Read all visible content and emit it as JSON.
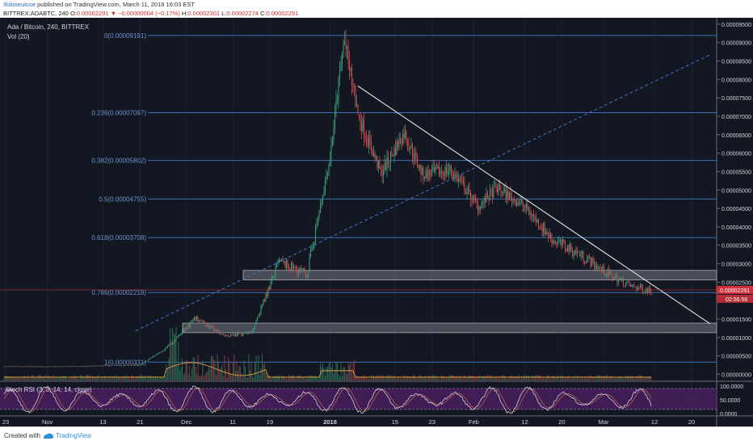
{
  "header": {
    "author": "Ifuloseulose",
    "published": " published on TradingView.com, March 11, 2018 16:03 EST",
    "symbol_line": "BITTREX:ADABTC, 240",
    "o_lbl": "O:",
    "o": "0.00002291",
    "change": " ▼ −0.00000004 (−0.17%)",
    "h_lbl": "H:",
    "h": "0.00002301",
    "l_lbl": "L:",
    "l": "0.00002274",
    "c_lbl": "C:",
    "c": "0.00002291"
  },
  "legend": {
    "pair": "Ada / Bitcoin, 240, BITTREX",
    "vol": "Vol (20)",
    "stoch": "Stoch RSI (3, 3, 14, 14, close)"
  },
  "price_axis": {
    "labels": [
      "0.00009500",
      "0.00009000",
      "0.00008500",
      "0.00008000",
      "0.00007500",
      "0.00007000",
      "0.00006500",
      "0.00006000",
      "0.00005500",
      "0.00005000",
      "0.00004500",
      "0.00004000",
      "0.00003500",
      "0.00003000",
      "0.00002500",
      "0.00001500",
      "0.00001000",
      "0.00000500",
      "0.00000000"
    ],
    "last_price": "0.00002291",
    "countdown": "02:56:56"
  },
  "rsi_axis": {
    "labels": [
      "100.0000",
      "50.0000",
      "0.0000"
    ]
  },
  "time_axis": {
    "labels": [
      "23",
      "Nov",
      "13",
      "21",
      "Dec",
      "11",
      "19",
      "2018",
      "15",
      "23",
      "Feb",
      "12",
      "20",
      "Mar",
      "12",
      "20"
    ]
  },
  "footer": {
    "created": "Created with",
    "brand": "TradingView"
  },
  "colors": {
    "background": "#131722",
    "fib_line": "#3d6fb4",
    "fib_text": "#6d93cf",
    "up": "#3a9c75",
    "down": "#d24a50",
    "trendline": "#e6e6e6",
    "dashed": "#3f74c4",
    "box": "#8a8d96",
    "rsi_fill": "#4a1f5e",
    "rsi_line": "#cfcfe8"
  },
  "chart_data": {
    "type": "candlestick",
    "title": "Ada / Bitcoin, 240, BITTREX",
    "indicators": [
      "Vol (20)",
      "Stoch RSI (3, 3, 14, 14, close)"
    ],
    "ylim": [
      0,
      9.55e-05
    ],
    "fib_levels": [
      {
        "label": "0(0.00009191)",
        "value": 9.191e-05
      },
      {
        "label": "0.236(0.00007097)",
        "value": 7.097e-05
      },
      {
        "label": "0.382(0.00005802)",
        "value": 5.802e-05
      },
      {
        "label": "0.5(0.00004755)",
        "value": 4.755e-05
      },
      {
        "label": "0.618(0.00003708)",
        "value": 3.708e-05
      },
      {
        "label": "0.786(0.00002218)",
        "value": 2.218e-05
      },
      {
        "label": "1(0.00000331)",
        "value": 3.31e-06
      }
    ],
    "zones": [
      {
        "low": 2.56e-05,
        "high": 2.82e-05
      },
      {
        "low": 1.13e-05,
        "high": 1.39e-05
      }
    ],
    "descending_trendline": [
      {
        "x": "2018-01-07",
        "y": 7.82e-05
      },
      {
        "x": "2018-03-24",
        "y": 1.37e-05
      }
    ],
    "rising_trendline": [
      {
        "x": "2017-11-20",
        "y": 1.18e-05
      },
      {
        "x": "2018-03-24",
        "y": 8.67e-05
      }
    ],
    "price_path": [
      [
        "2017-10-23",
        2.1e-06
      ],
      [
        "2017-11-05",
        2.1e-06
      ],
      [
        "2017-11-21",
        2.5e-06
      ],
      [
        "2017-11-27",
        7.5e-06
      ],
      [
        "2017-12-03",
        1.52e-05
      ],
      [
        "2017-12-09",
        1.05e-05
      ],
      [
        "2017-12-15",
        1.12e-05
      ],
      [
        "2017-12-21",
        3.05e-05
      ],
      [
        "2017-12-27",
        2.72e-05
      ],
      [
        "2018-01-01",
        5.9e-05
      ],
      [
        "2018-01-04",
        9.1e-05
      ],
      [
        "2018-01-07",
        7.05e-05
      ],
      [
        "2018-01-12",
        5.45e-05
      ],
      [
        "2018-01-17",
        6.55e-05
      ],
      [
        "2018-01-21",
        5.4e-05
      ],
      [
        "2018-01-27",
        5.55e-05
      ],
      [
        "2018-02-02",
        4.55e-05
      ],
      [
        "2018-02-06",
        5.05e-05
      ],
      [
        "2018-02-12",
        4.55e-05
      ],
      [
        "2018-02-18",
        3.65e-05
      ],
      [
        "2018-02-24",
        3.25e-05
      ],
      [
        "2018-03-02",
        2.72e-05
      ],
      [
        "2018-03-07",
        2.38e-05
      ],
      [
        "2018-03-11",
        2.29e-05
      ]
    ]
  }
}
